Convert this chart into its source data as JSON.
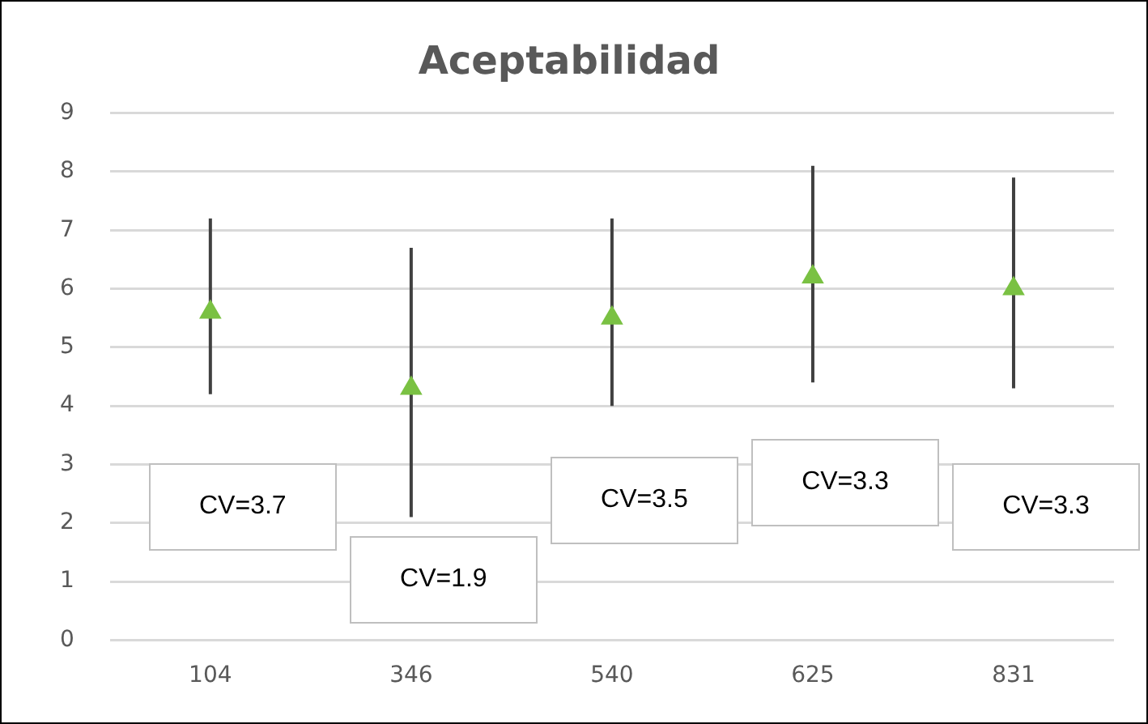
{
  "chart_data": {
    "type": "scatter",
    "title": "Aceptabilidad",
    "categories": [
      "104",
      "346",
      "540",
      "625",
      "831"
    ],
    "values": [
      5.6,
      4.3,
      5.5,
      6.2,
      6.0
    ],
    "errors": [
      [
        4.2,
        7.2
      ],
      [
        2.1,
        6.7
      ],
      [
        4.0,
        7.2
      ],
      [
        4.4,
        8.1
      ],
      [
        4.3,
        7.9
      ]
    ],
    "color": "#7ac143",
    "marker": "triangle",
    "ylim": [
      0,
      9
    ],
    "yticks": [
      0,
      1,
      2,
      3,
      4,
      5,
      6,
      7,
      8,
      9
    ],
    "grid": "y",
    "legend": false,
    "annotations": [
      "CV=3.7",
      "CV=1.9",
      "CV=3.5",
      "CV=3.3",
      "CV=3.3"
    ]
  }
}
